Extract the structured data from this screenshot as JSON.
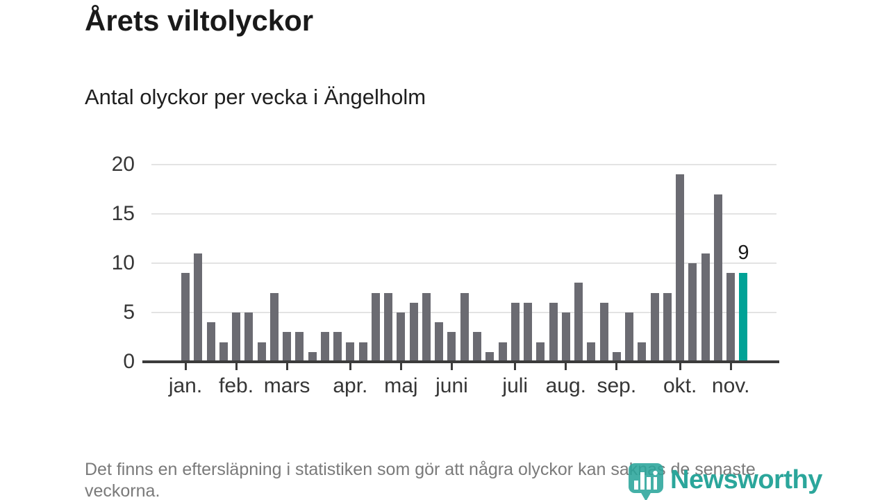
{
  "header": {
    "title": "Årets viltolyckor",
    "subtitle": "Antal olyckor per vecka i Ängelholm"
  },
  "chart_data": {
    "type": "bar",
    "title": "Årets viltolyckor",
    "subtitle": "Antal olyckor per vecka i Ängelholm",
    "xlabel": "",
    "ylabel": "",
    "ylim": [
      0,
      20
    ],
    "y_ticks": [
      0,
      5,
      10,
      15,
      20
    ],
    "grid": "horizontal",
    "categories_unit": "vecka",
    "values": [
      9,
      11,
      4,
      2,
      5,
      5,
      2,
      7,
      3,
      3,
      1,
      3,
      3,
      2,
      2,
      7,
      7,
      5,
      6,
      7,
      4,
      3,
      7,
      3,
      1,
      2,
      6,
      6,
      2,
      6,
      5,
      8,
      2,
      6,
      1,
      5,
      2,
      7,
      7,
      19,
      10,
      11,
      17,
      9,
      9
    ],
    "highlight_index": 44,
    "highlight_value_label": "9",
    "month_tick_labels": [
      "jan.",
      "feb.",
      "mars",
      "apr.",
      "maj",
      "juni",
      "juli",
      "aug.",
      "sep.",
      "okt.",
      "nov."
    ],
    "month_tick_bar_indices": [
      0,
      4,
      8,
      13,
      17,
      21,
      26,
      30,
      34,
      39,
      43
    ],
    "bar_color": "#6b6b72",
    "highlight_color": "#00a296",
    "gridline_color": "#e3e3e3",
    "axis_color": "#3b3b3b"
  },
  "footer": {
    "note": "Det finns en eftersläpning i statistiken som gör att några olyckor kan saknas de senaste veckorna.",
    "logo_text": "Newsworthy",
    "logo_color": "#2ba69b"
  }
}
